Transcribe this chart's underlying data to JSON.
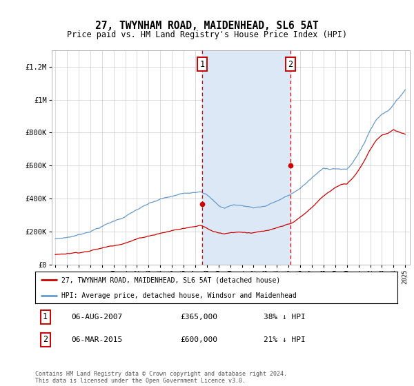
{
  "title": "27, TWYNHAM ROAD, MAIDENHEAD, SL6 5AT",
  "subtitle": "Price paid vs. HM Land Registry's House Price Index (HPI)",
  "legend_line1": "27, TWYNHAM ROAD, MAIDENHEAD, SL6 5AT (detached house)",
  "legend_line2": "HPI: Average price, detached house, Windsor and Maidenhead",
  "annotation1_label": "1",
  "annotation1_date": "06-AUG-2007",
  "annotation1_price": "£365,000",
  "annotation1_hpi": "38% ↓ HPI",
  "annotation1_year": 2007.59,
  "annotation1_value": 365000,
  "annotation2_label": "2",
  "annotation2_date": "06-MAR-2015",
  "annotation2_price": "£600,000",
  "annotation2_hpi": "21% ↓ HPI",
  "annotation2_year": 2015.17,
  "annotation2_value": 600000,
  "shade_start": 2007.59,
  "shade_end": 2015.17,
  "ylim": [
    0,
    1300000
  ],
  "yticks": [
    0,
    200000,
    400000,
    600000,
    800000,
    1000000,
    1200000
  ],
  "ytick_labels": [
    "£0",
    "£200K",
    "£400K",
    "£600K",
    "£800K",
    "£1M",
    "£1.2M"
  ],
  "red_color": "#cc0000",
  "blue_color": "#6699cc",
  "shade_color": "#dce8f5",
  "grid_color": "#cccccc",
  "footer": "Contains HM Land Registry data © Crown copyright and database right 2024.\nThis data is licensed under the Open Government Licence v3.0.",
  "xlim_left": 1994.7,
  "xlim_right": 2025.4
}
